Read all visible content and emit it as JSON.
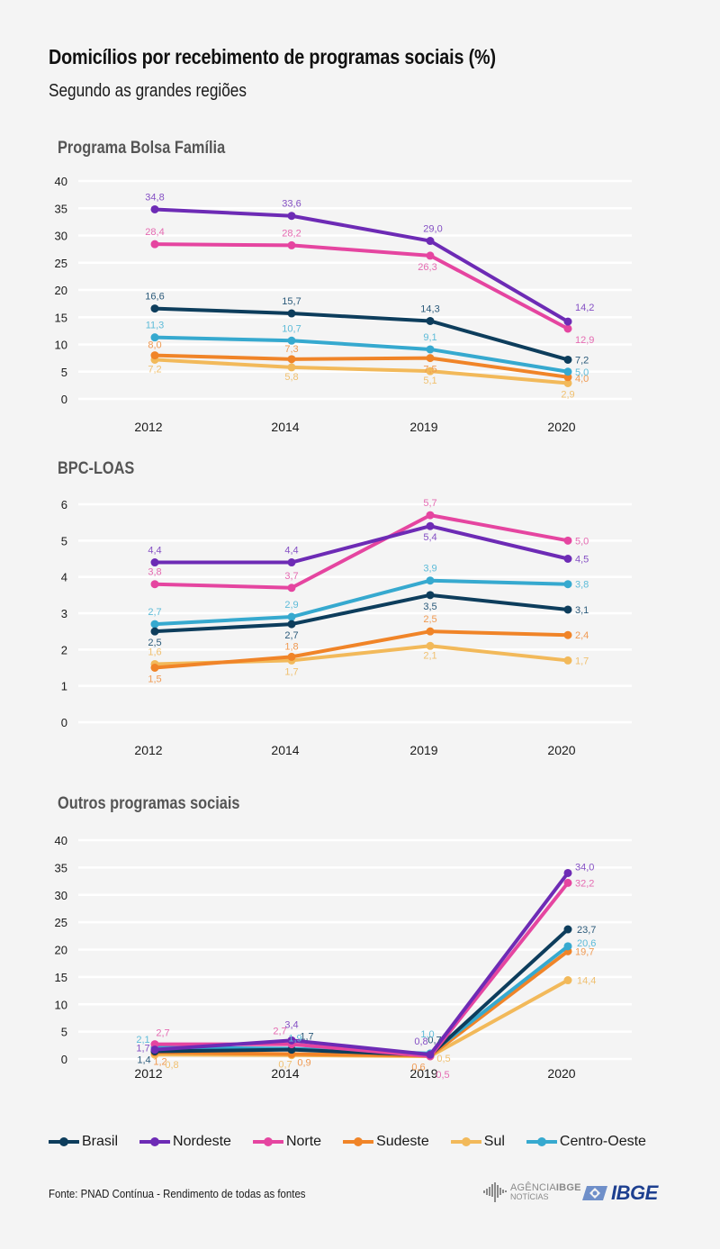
{
  "header": {
    "title": "Domicílios por recebimento de programas sociais (%)",
    "subtitle": "Segundo as grandes regiões"
  },
  "series_styles": [
    {
      "name": "Brasil",
      "color": "#0d3d5c",
      "label_color": "#2b5a7a"
    },
    {
      "name": "Nordeste",
      "color": "#6d2bb5",
      "label_color": "#8550c4"
    },
    {
      "name": "Norte",
      "color": "#e545a0",
      "label_color": "#e56bb2"
    },
    {
      "name": "Sudeste",
      "color": "#f08428",
      "label_color": "#f09a52"
    },
    {
      "name": "Sul",
      "color": "#f2b95a",
      "label_color": "#f0c070"
    },
    {
      "name": "Centro-Oeste",
      "color": "#36a9cf",
      "label_color": "#5dbbd8"
    }
  ],
  "chart_data": [
    {
      "type": "line",
      "title": "Programa Bolsa Família",
      "categories": [
        "2012",
        "2014",
        "2019",
        "2020"
      ],
      "ylim": [
        0,
        40
      ],
      "yticks": [
        0,
        5,
        10,
        15,
        20,
        25,
        30,
        35,
        40
      ],
      "grid": true,
      "series": [
        {
          "name": "Brasil",
          "values": [
            16.6,
            15.7,
            14.3,
            7.2
          ],
          "labels": [
            "16,6",
            "15,7",
            "14,3",
            "7,2"
          ]
        },
        {
          "name": "Nordeste",
          "values": [
            34.8,
            33.6,
            29.0,
            14.2
          ],
          "labels": [
            "34,8",
            "33,6",
            "29,0",
            "14,2"
          ]
        },
        {
          "name": "Norte",
          "values": [
            28.4,
            28.2,
            26.3,
            12.9
          ],
          "labels": [
            "28,4",
            "28,2",
            "26,3",
            "12,9"
          ]
        },
        {
          "name": "Sudeste",
          "values": [
            8.0,
            7.3,
            7.5,
            4.0
          ],
          "labels": [
            "8,0",
            "7,3",
            "7,5",
            "4,0"
          ]
        },
        {
          "name": "Sul",
          "values": [
            7.2,
            5.8,
            5.1,
            2.9
          ],
          "labels": [
            "7,2",
            "5,8",
            "5,1",
            "2,9"
          ]
        },
        {
          "name": "Centro-Oeste",
          "values": [
            11.3,
            10.7,
            9.1,
            5.0
          ],
          "labels": [
            "11,3",
            "10,7",
            "9,1",
            "5,0"
          ]
        }
      ]
    },
    {
      "type": "line",
      "title": "BPC-LOAS",
      "categories": [
        "2012",
        "2014",
        "2019",
        "2020"
      ],
      "ylim": [
        0,
        6
      ],
      "yticks": [
        0,
        1,
        2,
        3,
        4,
        5,
        6
      ],
      "grid": true,
      "series": [
        {
          "name": "Brasil",
          "values": [
            2.5,
            2.7,
            3.5,
            3.1
          ],
          "labels": [
            "2,5",
            "2,7",
            "3,5",
            "3,1"
          ]
        },
        {
          "name": "Nordeste",
          "values": [
            4.4,
            4.4,
            5.4,
            4.5
          ],
          "labels": [
            "4,4",
            "4,4",
            "5,4",
            "4,5"
          ]
        },
        {
          "name": "Norte",
          "values": [
            3.8,
            3.7,
            5.7,
            5.0
          ],
          "labels": [
            "3,8",
            "3,7",
            "5,7",
            "5,0"
          ]
        },
        {
          "name": "Sudeste",
          "values": [
            1.5,
            1.8,
            2.5,
            2.4
          ],
          "labels": [
            "1,5",
            "1,8",
            "2,5",
            "2,4"
          ]
        },
        {
          "name": "Sul",
          "values": [
            1.6,
            1.7,
            2.1,
            1.7
          ],
          "labels": [
            "1,6",
            "1,7",
            "2,1",
            "1,7"
          ]
        },
        {
          "name": "Centro-Oeste",
          "values": [
            2.7,
            2.9,
            3.9,
            3.8
          ],
          "labels": [
            "2,7",
            "2,9",
            "3,9",
            "3,8"
          ]
        }
      ]
    },
    {
      "type": "line",
      "title": "Outros programas sociais",
      "categories": [
        "2012",
        "2014",
        "2019",
        "2020"
      ],
      "ylim": [
        0,
        40
      ],
      "yticks": [
        0,
        5,
        10,
        15,
        20,
        25,
        30,
        35,
        40
      ],
      "grid": true,
      "series": [
        {
          "name": "Brasil",
          "values": [
            1.4,
            1.7,
            0.7,
            23.7
          ],
          "labels": [
            "1,4",
            "1,7",
            "0,7",
            "23,7"
          ]
        },
        {
          "name": "Nordeste",
          "values": [
            1.7,
            3.4,
            0.8,
            34.0
          ],
          "labels": [
            "1,7",
            "3,4",
            "0,8",
            "34,0"
          ]
        },
        {
          "name": "Norte",
          "values": [
            2.7,
            2.7,
            0.5,
            32.2
          ],
          "labels": [
            "2,7",
            "2,7",
            "0,5",
            "32,2"
          ]
        },
        {
          "name": "Sudeste",
          "values": [
            1.2,
            0.9,
            0.6,
            19.7
          ],
          "labels": [
            "1,2",
            "0,9",
            "0,6",
            "19,7"
          ]
        },
        {
          "name": "Sul",
          "values": [
            0.8,
            0.7,
            0.5,
            14.4
          ],
          "labels": [
            "0,8",
            "0,7",
            "0,5",
            "14,4"
          ]
        },
        {
          "name": "Centro-Oeste",
          "values": [
            2.1,
            1.9,
            1.0,
            20.6
          ],
          "labels": [
            "2,1",
            "1,9",
            "1,0",
            "20,6"
          ]
        }
      ]
    }
  ],
  "legend": [
    {
      "name": "Brasil"
    },
    {
      "name": "Nordeste"
    },
    {
      "name": "Norte"
    },
    {
      "name": "Sudeste"
    },
    {
      "name": "Sul"
    },
    {
      "name": "Centro-Oeste"
    }
  ],
  "footer": {
    "source": "Fonte: PNAD Contínua - Rendimento de todas as fontes",
    "agencia_line1_a": "AGÊNCIA",
    "agencia_line1_b": "IBGE",
    "agencia_line2": "NOTÍCIAS",
    "ibge_logo": "IBGE"
  }
}
